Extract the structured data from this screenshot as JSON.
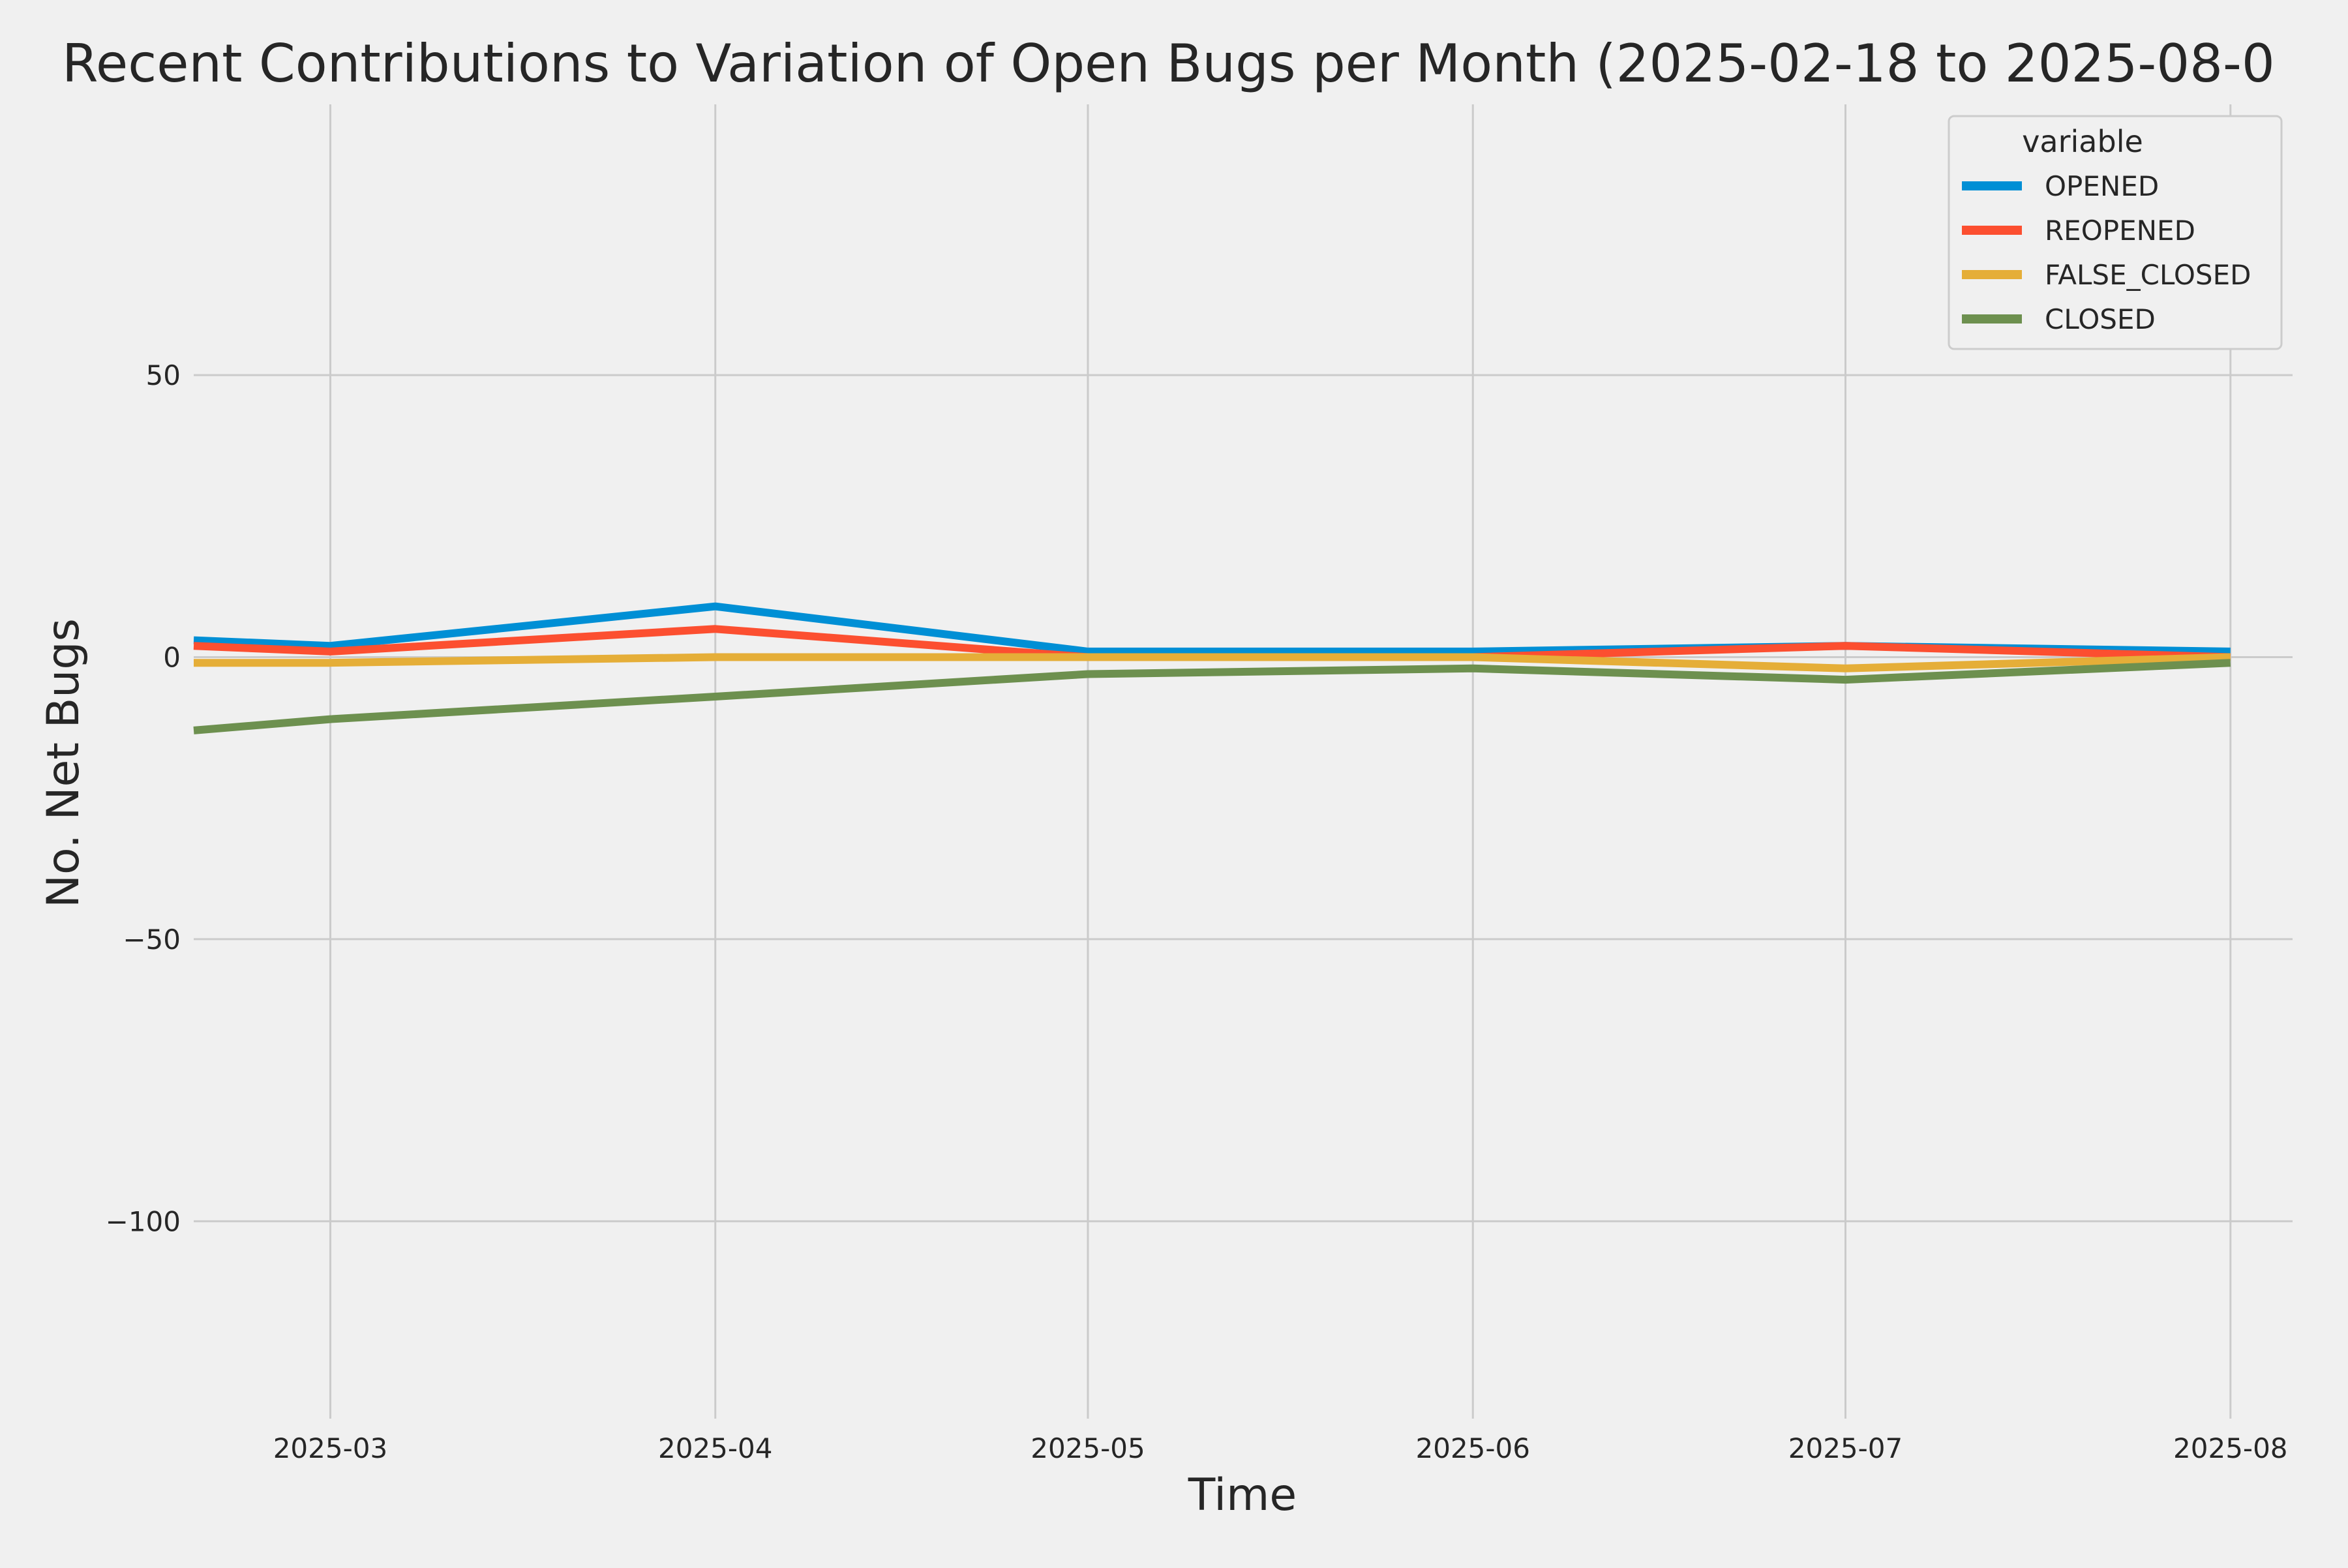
{
  "chart_data": {
    "type": "line",
    "title": "Recent Contributions to Variation of Open Bugs per Month (2025-02-18 to 2025-08-0",
    "xlabel": "Time",
    "ylabel": "No. Net Bugs",
    "xlim": [
      "2025-02-18",
      "2025-08-06"
    ],
    "ylim": [
      -135,
      98
    ],
    "grid": true,
    "x_ticks": [
      {
        "date": "2025-03-01",
        "label": "2025-03"
      },
      {
        "date": "2025-04-01",
        "label": "2025-04"
      },
      {
        "date": "2025-05-01",
        "label": "2025-05"
      },
      {
        "date": "2025-06-01",
        "label": "2025-06"
      },
      {
        "date": "2025-07-01",
        "label": "2025-07"
      },
      {
        "date": "2025-08-01",
        "label": "2025-08"
      }
    ],
    "y_ticks": [
      {
        "value": 50,
        "label": "50"
      },
      {
        "value": 0,
        "label": "0"
      },
      {
        "value": -50,
        "label": "−50"
      },
      {
        "value": -100,
        "label": "−100"
      }
    ],
    "legend": {
      "title": "variable",
      "position": "top-right"
    },
    "x": [
      "2025-02-18",
      "2025-03-01",
      "2025-04-01",
      "2025-05-01",
      "2025-06-01",
      "2025-07-01",
      "2025-08-01"
    ],
    "series": [
      {
        "name": "OPENED",
        "color": "#008fd5",
        "values": [
          3,
          2,
          9,
          1,
          1,
          2,
          1
        ]
      },
      {
        "name": "REOPENED",
        "color": "#fc4f30",
        "values": [
          2,
          1,
          5,
          0,
          0,
          2,
          0
        ]
      },
      {
        "name": "FALSE_CLOSED",
        "color": "#e5ae38",
        "values": [
          -1,
          -1,
          0,
          0,
          0,
          -2,
          0
        ]
      },
      {
        "name": "CLOSED",
        "color": "#6d904f",
        "values": [
          -13,
          -11,
          -7,
          -3,
          -2,
          -4,
          -1
        ]
      }
    ]
  }
}
